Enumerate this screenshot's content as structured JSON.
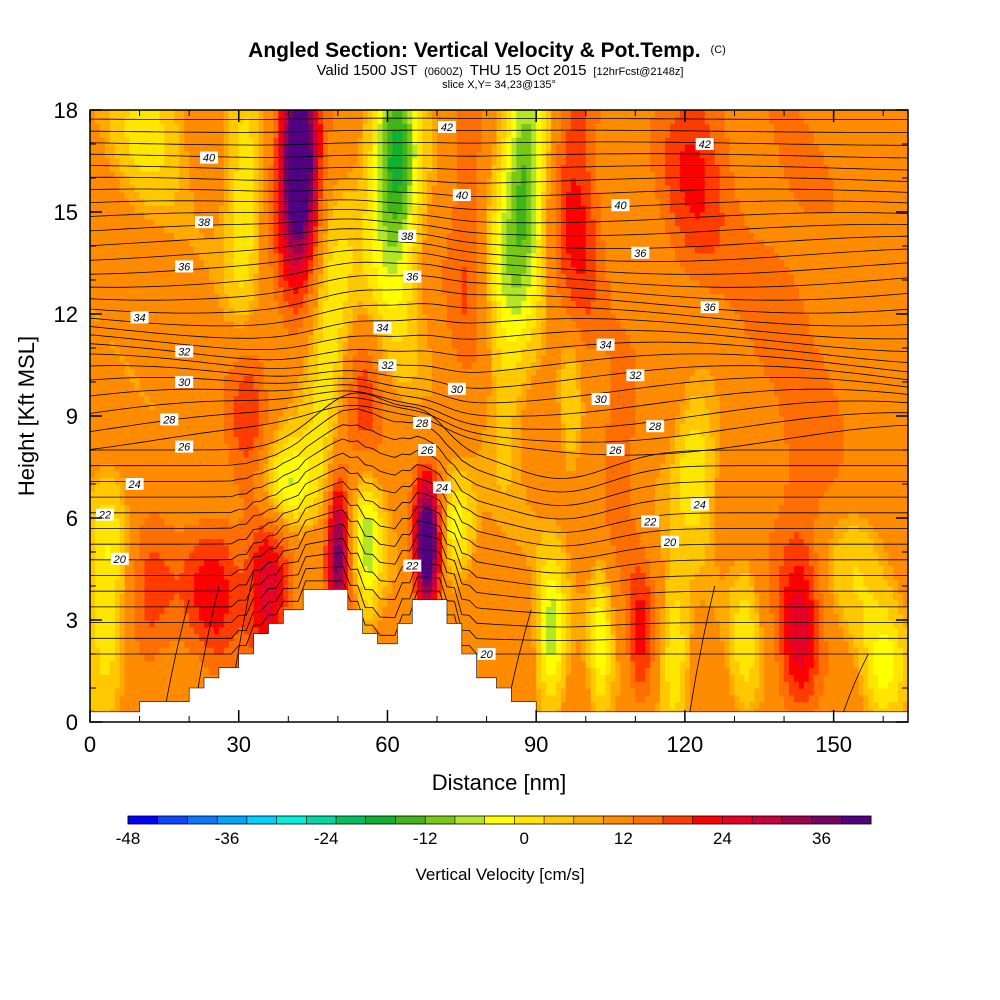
{
  "title": {
    "main": "Angled Section: Vertical Velocity & Pot.Temp.",
    "main_tag": "(C)",
    "valid_prefix": "Valid 1500 JST",
    "valid_z": "(0600Z)",
    "valid_date": "THU 15 Oct 2015",
    "fcst": "[12hrFcst@2148z]",
    "slice": "slice X,Y= 34,23@135°"
  },
  "chart_data": {
    "type": "heatmap",
    "xlabel": "Distance [nm]",
    "ylabel": "Height [Kft MSL]",
    "xlim": [
      0,
      165
    ],
    "ylim": [
      0,
      18
    ],
    "xticks": [
      0,
      30,
      60,
      90,
      120,
      150
    ],
    "yticks": [
      0,
      3,
      6,
      9,
      12,
      15,
      18
    ],
    "xtick_labels": [
      "0",
      "30",
      "60",
      "90",
      "120",
      "150"
    ],
    "ytick_labels": [
      "0",
      "3",
      "6",
      "9",
      "12",
      "15",
      "18"
    ],
    "grid": false,
    "colorbar": {
      "title": "Vertical Velocity [cm/s]",
      "min": -48,
      "max": 42,
      "step": 3,
      "tick_values": [
        -48,
        -36,
        -24,
        -12,
        0,
        12,
        24,
        36
      ],
      "tick_labels": [
        "-48",
        "-36",
        "-24",
        "-12",
        "0",
        "12",
        "24",
        "36"
      ],
      "colors": [
        "#0000ff",
        "#0a46ff",
        "#0a78ff",
        "#00a5ff",
        "#00d2ff",
        "#00f0dc",
        "#00d8a0",
        "#00c060",
        "#10b030",
        "#40b418",
        "#78c814",
        "#b4e628",
        "#ffff00",
        "#ffe600",
        "#ffc800",
        "#ffaa00",
        "#ff8c00",
        "#ff6e00",
        "#ff3c00",
        "#ff0000",
        "#e60028",
        "#c8003c",
        "#a00050",
        "#780064",
        "#500080"
      ]
    },
    "terrain_profile": [
      [
        0,
        0.3
      ],
      [
        10,
        0.3
      ],
      [
        10,
        0.6
      ],
      [
        20,
        0.6
      ],
      [
        20,
        1.0
      ],
      [
        23,
        1.0
      ],
      [
        23,
        1.3
      ],
      [
        26,
        1.3
      ],
      [
        26,
        1.6
      ],
      [
        30,
        1.6
      ],
      [
        30,
        2.0
      ],
      [
        33,
        2.0
      ],
      [
        33,
        2.6
      ],
      [
        36,
        2.6
      ],
      [
        36,
        2.9
      ],
      [
        39,
        2.9
      ],
      [
        39,
        3.3
      ],
      [
        43,
        3.3
      ],
      [
        43,
        3.9
      ],
      [
        52,
        3.9
      ],
      [
        52,
        3.3
      ],
      [
        55,
        3.3
      ],
      [
        55,
        2.6
      ],
      [
        58,
        2.6
      ],
      [
        58,
        2.3
      ],
      [
        62,
        2.3
      ],
      [
        62,
        2.9
      ],
      [
        65,
        2.9
      ],
      [
        65,
        3.6
      ],
      [
        72,
        3.6
      ],
      [
        72,
        2.9
      ],
      [
        75,
        2.9
      ],
      [
        75,
        2.0
      ],
      [
        78,
        2.0
      ],
      [
        78,
        1.3
      ],
      [
        82,
        1.3
      ],
      [
        82,
        1.0
      ],
      [
        85,
        1.0
      ],
      [
        85,
        0.6
      ],
      [
        90,
        0.6
      ],
      [
        90,
        0.3
      ],
      [
        165,
        0.3
      ]
    ],
    "velocity_cells": [
      {
        "x": 42,
        "y": 16.5,
        "sx": 2.5,
        "sy": 1.8,
        "w": 32
      },
      {
        "x": 43,
        "y": 14.5,
        "sx": 3.5,
        "sy": 3.0,
        "w": 10
      },
      {
        "x": 31,
        "y": 15.0,
        "sx": 2.5,
        "sy": 2.5,
        "w": -10
      },
      {
        "x": 62,
        "y": 16.5,
        "sx": 3.0,
        "sy": 2.0,
        "w": -18
      },
      {
        "x": 60,
        "y": 14.0,
        "sx": 4.0,
        "sy": 3.5,
        "w": -8
      },
      {
        "x": 88,
        "y": 16.0,
        "sx": 3.0,
        "sy": 2.5,
        "w": -18
      },
      {
        "x": 84,
        "y": 12.5,
        "sx": 3.0,
        "sy": 3.0,
        "w": -9
      },
      {
        "x": 98,
        "y": 15.0,
        "sx": 3.5,
        "sy": 4.0,
        "w": 10
      },
      {
        "x": 76,
        "y": 14.5,
        "sx": 3.0,
        "sy": 3.5,
        "w": 6
      },
      {
        "x": 12,
        "y": 17.5,
        "sx": 5.0,
        "sy": 1.5,
        "w": -7
      },
      {
        "x": 122,
        "y": 16.5,
        "sx": 5.0,
        "sy": 2.5,
        "w": 9
      },
      {
        "x": 140,
        "y": 13.5,
        "sx": 8.0,
        "sy": 3.5,
        "w": 4
      },
      {
        "x": 48,
        "y": 11.5,
        "sx": 4.0,
        "sy": 2.5,
        "w": -12
      },
      {
        "x": 55,
        "y": 9.5,
        "sx": 3.5,
        "sy": 2.0,
        "w": 10
      },
      {
        "x": 32,
        "y": 9.5,
        "sx": 3.0,
        "sy": 2.0,
        "w": 8
      },
      {
        "x": 40,
        "y": 7.0,
        "sx": 4.0,
        "sy": 1.0,
        "w": -14
      },
      {
        "x": 50,
        "y": 5.0,
        "sx": 1.5,
        "sy": 1.6,
        "w": 22
      },
      {
        "x": 56,
        "y": 5.2,
        "sx": 2.0,
        "sy": 1.5,
        "w": -14
      },
      {
        "x": 68,
        "y": 5.2,
        "sx": 1.8,
        "sy": 1.3,
        "w": 34
      },
      {
        "x": 74,
        "y": 5.8,
        "sx": 2.5,
        "sy": 1.0,
        "w": -12
      },
      {
        "x": 36,
        "y": 4.0,
        "sx": 3.0,
        "sy": 1.5,
        "w": 16
      },
      {
        "x": 25,
        "y": 4.0,
        "sx": 4.0,
        "sy": 1.5,
        "w": 11
      },
      {
        "x": 12,
        "y": 3.5,
        "sx": 4.0,
        "sy": 1.5,
        "w": 8
      },
      {
        "x": 4,
        "y": 5.5,
        "sx": 3.0,
        "sy": 1.5,
        "w": -8
      },
      {
        "x": 3,
        "y": 1.8,
        "sx": 3.0,
        "sy": 1.5,
        "w": -8
      },
      {
        "x": 93,
        "y": 2.5,
        "sx": 2.0,
        "sy": 1.6,
        "w": -14
      },
      {
        "x": 103,
        "y": 2.5,
        "sx": 1.5,
        "sy": 1.6,
        "w": -10
      },
      {
        "x": 111,
        "y": 2.5,
        "sx": 1.8,
        "sy": 1.6,
        "w": 10
      },
      {
        "x": 118,
        "y": 2.0,
        "sx": 2.0,
        "sy": 1.6,
        "w": -10
      },
      {
        "x": 143,
        "y": 2.5,
        "sx": 3.0,
        "sy": 1.8,
        "w": 13
      },
      {
        "x": 132,
        "y": 2.5,
        "sx": 2.0,
        "sy": 1.6,
        "w": -7
      },
      {
        "x": 160,
        "y": 1.5,
        "sx": 3.0,
        "sy": 1.2,
        "w": -10
      },
      {
        "x": 97,
        "y": 9.5,
        "sx": 2.0,
        "sy": 2.0,
        "w": -8
      },
      {
        "x": 107,
        "y": 8.0,
        "sx": 2.5,
        "sy": 2.0,
        "w": 7
      },
      {
        "x": 122,
        "y": 7.5,
        "sx": 3.0,
        "sy": 1.5,
        "w": -10
      },
      {
        "x": 145,
        "y": 7.0,
        "sx": 5.0,
        "sy": 2.0,
        "w": 5
      },
      {
        "x": 154,
        "y": 4.5,
        "sx": 5.0,
        "sy": 1.5,
        "w": -5
      }
    ],
    "isentrope_levels": [
      20,
      22,
      24,
      26,
      28,
      30,
      32,
      34,
      36,
      38,
      40,
      42
    ],
    "isentrope_labels": [
      {
        "text": "42",
        "x": 72,
        "y": 17.5
      },
      {
        "text": "42",
        "x": 124,
        "y": 17.0
      },
      {
        "text": "40",
        "x": 24,
        "y": 16.6
      },
      {
        "text": "40",
        "x": 75,
        "y": 15.5
      },
      {
        "text": "40",
        "x": 107,
        "y": 15.2
      },
      {
        "text": "38",
        "x": 23,
        "y": 14.7
      },
      {
        "text": "38",
        "x": 64,
        "y": 14.3
      },
      {
        "text": "36",
        "x": 19,
        "y": 13.4
      },
      {
        "text": "36",
        "x": 65,
        "y": 13.1
      },
      {
        "text": "36",
        "x": 111,
        "y": 13.8
      },
      {
        "text": "36",
        "x": 125,
        "y": 12.2
      },
      {
        "text": "34",
        "x": 10,
        "y": 11.9
      },
      {
        "text": "34",
        "x": 59,
        "y": 11.6
      },
      {
        "text": "34",
        "x": 104,
        "y": 11.1
      },
      {
        "text": "32",
        "x": 19,
        "y": 10.9
      },
      {
        "text": "32",
        "x": 60,
        "y": 10.5
      },
      {
        "text": "32",
        "x": 110,
        "y": 10.2
      },
      {
        "text": "30",
        "x": 19,
        "y": 10.0
      },
      {
        "text": "30",
        "x": 74,
        "y": 9.8
      },
      {
        "text": "30",
        "x": 103,
        "y": 9.5
      },
      {
        "text": "28",
        "x": 16,
        "y": 8.9
      },
      {
        "text": "28",
        "x": 67,
        "y": 8.8
      },
      {
        "text": "28",
        "x": 114,
        "y": 8.7
      },
      {
        "text": "26",
        "x": 19,
        "y": 8.1
      },
      {
        "text": "26",
        "x": 68,
        "y": 8.0
      },
      {
        "text": "26",
        "x": 106,
        "y": 8.0
      },
      {
        "text": "24",
        "x": 9,
        "y": 7.0
      },
      {
        "text": "24",
        "x": 71,
        "y": 6.9
      },
      {
        "text": "24",
        "x": 123,
        "y": 6.4
      },
      {
        "text": "22",
        "x": 3,
        "y": 6.1
      },
      {
        "text": "22",
        "x": 65,
        "y": 4.6
      },
      {
        "text": "22",
        "x": 113,
        "y": 5.9
      },
      {
        "text": "20",
        "x": 6,
        "y": 4.8
      },
      {
        "text": "20",
        "x": 117,
        "y": 5.3
      },
      {
        "text": "20",
        "x": 80,
        "y": 2.0
      }
    ]
  }
}
